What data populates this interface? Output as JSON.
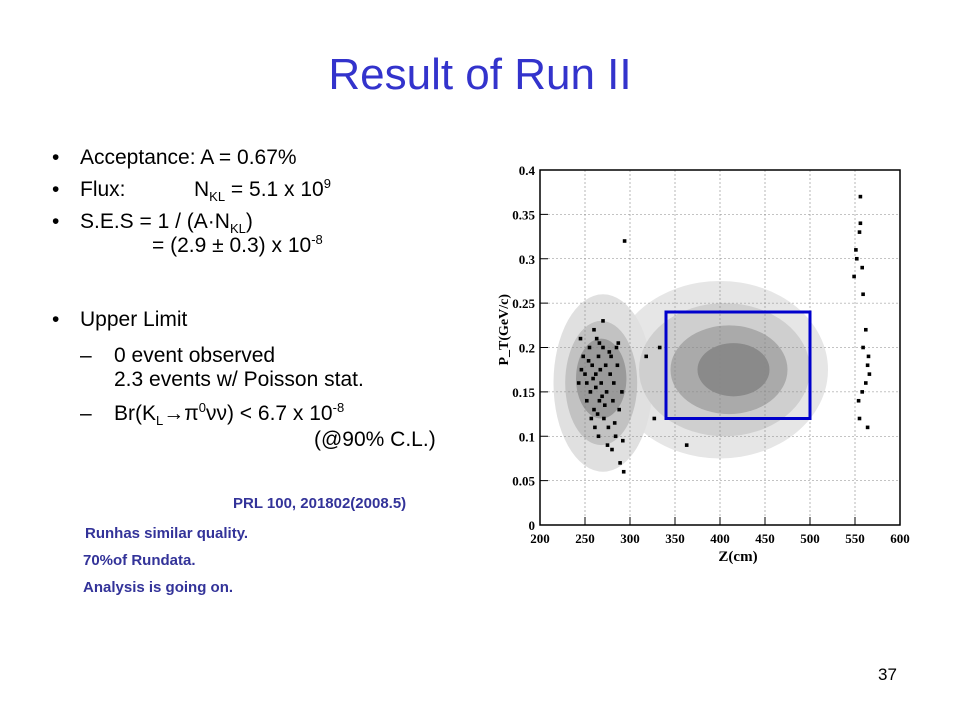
{
  "slide": {
    "title": "Result of Run II",
    "page_number": "37"
  },
  "bullets": {
    "acceptance": "Acceptance:  A = 0.67%",
    "flux_label": "Flux:",
    "flux_n": "N",
    "flux_sub": "KL",
    "flux_val": " =  5.1 x 10",
    "flux_exp": "9",
    "ses_a": "S.E.S = 1 / (A·N",
    "ses_sub": "KL",
    "ses_b": ")",
    "ses_line2": "= (2.9 ± 0.3) x 10",
    "ses_exp": "-8",
    "upper": "Upper Limit",
    "sub1_dash": "–",
    "sub1_l1": "0 event observed",
    "sub1_l2": "2.3 events  w/ Poisson stat.",
    "sub2_dash": "–",
    "br_a": "Br(K",
    "br_sub": "L",
    "br_b": "→π",
    "br_sup": "0",
    "br_c": "νν) < 6.7 x 10",
    "br_exp": "-8",
    "br_cl": "(@90% C.L.)",
    "bullet_char": "•"
  },
  "notes": {
    "prl": "PRL 100, 201802(2008.5)",
    "line1": "Run\u0003has similar quality.",
    "line2": " 70%of Run\u0003data.",
    "line3": "Analysis is going on."
  },
  "colors": {
    "title": "#3333cc",
    "note": "#333399",
    "signal_box": "#0000cc"
  },
  "chart_data": {
    "type": "scatter",
    "xlabel": "Z(cm)",
    "ylabel": "P_T(GeV/c)",
    "xlim": [
      200,
      600
    ],
    "ylim": [
      0,
      0.4
    ],
    "x_ticks": [
      "200",
      "250",
      "300",
      "350",
      "400",
      "450",
      "500",
      "550",
      "600"
    ],
    "y_ticks": [
      "0",
      "0.05",
      "0.1",
      "0.15",
      "0.2",
      "0.25",
      "0.3",
      "0.35",
      "0.4"
    ],
    "grid": true,
    "signal_box": {
      "z": [
        340,
        500
      ],
      "pt": [
        0.12,
        0.24
      ]
    },
    "points": [
      [
        245,
        0.21
      ],
      [
        248,
        0.19
      ],
      [
        250,
        0.17
      ],
      [
        252,
        0.16
      ],
      [
        255,
        0.2
      ],
      [
        256,
        0.15
      ],
      [
        258,
        0.18
      ],
      [
        260,
        0.13
      ],
      [
        262,
        0.17
      ],
      [
        263,
        0.21
      ],
      [
        265,
        0.19
      ],
      [
        266,
        0.14
      ],
      [
        268,
        0.16
      ],
      [
        270,
        0.2
      ],
      [
        271,
        0.12
      ],
      [
        273,
        0.18
      ],
      [
        274,
        0.15
      ],
      [
        276,
        0.11
      ],
      [
        278,
        0.17
      ],
      [
        279,
        0.19
      ],
      [
        281,
        0.14
      ],
      [
        282,
        0.16
      ],
      [
        284,
        0.1
      ],
      [
        286,
        0.18
      ],
      [
        288,
        0.13
      ],
      [
        289,
        0.07
      ],
      [
        291,
        0.15
      ],
      [
        260,
        0.22
      ],
      [
        265,
        0.1
      ],
      [
        270,
        0.23
      ],
      [
        275,
        0.09
      ],
      [
        252,
        0.14
      ],
      [
        257,
        0.12
      ],
      [
        262,
        0.155
      ],
      [
        267,
        0.175
      ],
      [
        272,
        0.135
      ],
      [
        277,
        0.195
      ],
      [
        283,
        0.115
      ],
      [
        287,
        0.205
      ],
      [
        254,
        0.185
      ],
      [
        259,
        0.165
      ],
      [
        264,
        0.125
      ],
      [
        269,
        0.145
      ],
      [
        246,
        0.175
      ],
      [
        243,
        0.16
      ],
      [
        280,
        0.085
      ],
      [
        292,
        0.095
      ],
      [
        285,
        0.2
      ],
      [
        261,
        0.11
      ],
      [
        266,
        0.205
      ],
      [
        294,
        0.32
      ],
      [
        318,
        0.19
      ],
      [
        327,
        0.12
      ],
      [
        333,
        0.2
      ],
      [
        363,
        0.09
      ],
      [
        293,
        0.06
      ],
      [
        556,
        0.37
      ],
      [
        552,
        0.3
      ],
      [
        549,
        0.28
      ],
      [
        551,
        0.31
      ],
      [
        558,
        0.29
      ],
      [
        559,
        0.26
      ],
      [
        562,
        0.22
      ],
      [
        564,
        0.18
      ],
      [
        566,
        0.17
      ],
      [
        565,
        0.19
      ],
      [
        559,
        0.2
      ],
      [
        562,
        0.16
      ],
      [
        558,
        0.15
      ],
      [
        564,
        0.11
      ],
      [
        554,
        0.14
      ],
      [
        555,
        0.33
      ],
      [
        556,
        0.34
      ],
      [
        555,
        0.12
      ]
    ]
  }
}
